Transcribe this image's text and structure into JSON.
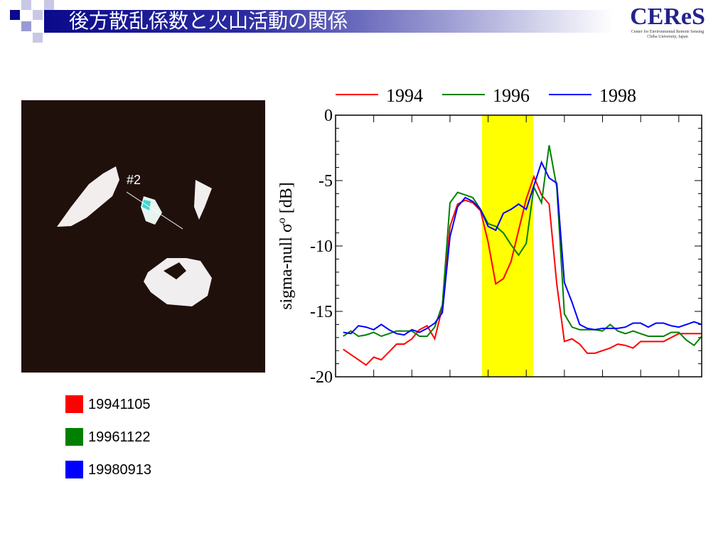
{
  "header": {
    "title": "後方散乱係数と火山活動の関係",
    "logo": "CEReS",
    "logo_lines": [
      "Center for Environmental Remote Sensing",
      "Chiba University, Japan"
    ]
  },
  "image": {
    "label": "#2"
  },
  "swatches": [
    {
      "label": "19941105",
      "color": "#ff0000"
    },
    {
      "label": "19961122",
      "color": "#008000"
    },
    {
      "label": "19980913",
      "color": "#0000ff"
    }
  ],
  "chart_data": {
    "type": "line",
    "ylabel": {
      "text": "sigma-null σ",
      "sup": "o",
      "unit": " [dB]"
    },
    "x": [
      1,
      2,
      3,
      4,
      5,
      6,
      7,
      8,
      9,
      10,
      11,
      12,
      13,
      14,
      15,
      16,
      17,
      18,
      19,
      20,
      21,
      22,
      23,
      24,
      25,
      26,
      27,
      28,
      29,
      30,
      31,
      32,
      33,
      34,
      35,
      36,
      37,
      38,
      39,
      40,
      41,
      42,
      43,
      44,
      45,
      46,
      47,
      48
    ],
    "series": [
      {
        "name": "1994",
        "color": "#ff0000",
        "values": [
          -17.9,
          -18.3,
          -18.7,
          -19.1,
          -18.5,
          -18.7,
          -18.1,
          -17.5,
          -17.5,
          -17.1,
          -16.4,
          -16.1,
          -17.1,
          -14.7,
          -8.5,
          -6.8,
          -6.5,
          -6.7,
          -7.3,
          -9.7,
          -12.9,
          -12.5,
          -11.2,
          -8.8,
          -6.4,
          -4.7,
          -6.1,
          -6.8,
          -12.9,
          -17.3,
          -17.1,
          -17.5,
          -18.2,
          -18.2,
          -18.0,
          -17.8,
          -17.5,
          -17.6,
          -17.8,
          -17.3,
          -17.3,
          -17.3,
          -17.3,
          -17.0,
          -16.7,
          -16.7,
          -16.7,
          -16.7
        ]
      },
      {
        "name": "1996",
        "color": "#008000",
        "values": [
          -16.9,
          -16.5,
          -16.9,
          -16.8,
          -16.6,
          -16.9,
          -16.7,
          -16.5,
          -16.5,
          -16.5,
          -16.9,
          -16.9,
          -16.2,
          -14.5,
          -6.7,
          -5.9,
          -6.1,
          -6.3,
          -7.2,
          -8.3,
          -8.5,
          -9.0,
          -9.9,
          -10.7,
          -9.8,
          -5.5,
          -6.7,
          -2.3,
          -5.5,
          -15.2,
          -16.2,
          -16.4,
          -16.4,
          -16.4,
          -16.5,
          -16.0,
          -16.5,
          -16.7,
          -16.5,
          -16.7,
          -16.9,
          -16.9,
          -16.9,
          -16.6,
          -16.6,
          -17.2,
          -17.6,
          -16.9
        ]
      },
      {
        "name": "1998",
        "color": "#0000ff",
        "values": [
          -16.6,
          -16.7,
          -16.1,
          -16.2,
          -16.4,
          -16.0,
          -16.4,
          -16.7,
          -16.8,
          -16.4,
          -16.6,
          -16.3,
          -15.9,
          -15.1,
          -9.3,
          -7.0,
          -6.3,
          -6.6,
          -7.2,
          -8.5,
          -8.8,
          -7.5,
          -7.2,
          -6.8,
          -7.2,
          -5.4,
          -3.6,
          -4.8,
          -5.2,
          -12.8,
          -14.3,
          -16.0,
          -16.3,
          -16.4,
          -16.3,
          -16.3,
          -16.3,
          -16.2,
          -15.9,
          -15.9,
          -16.2,
          -15.9,
          -15.9,
          -16.1,
          -16.2,
          -16.0,
          -15.8,
          -16.0
        ]
      }
    ],
    "span": {
      "x": [
        19.2,
        25.9
      ],
      "color": "#ffff00"
    },
    "xlim": [
      0,
      48
    ],
    "xticks": [
      5,
      10,
      15,
      20,
      25,
      30,
      35,
      40,
      45
    ],
    "ylim": [
      -20,
      0
    ],
    "yticks": [
      0,
      -5,
      -10,
      -15,
      -20
    ]
  }
}
